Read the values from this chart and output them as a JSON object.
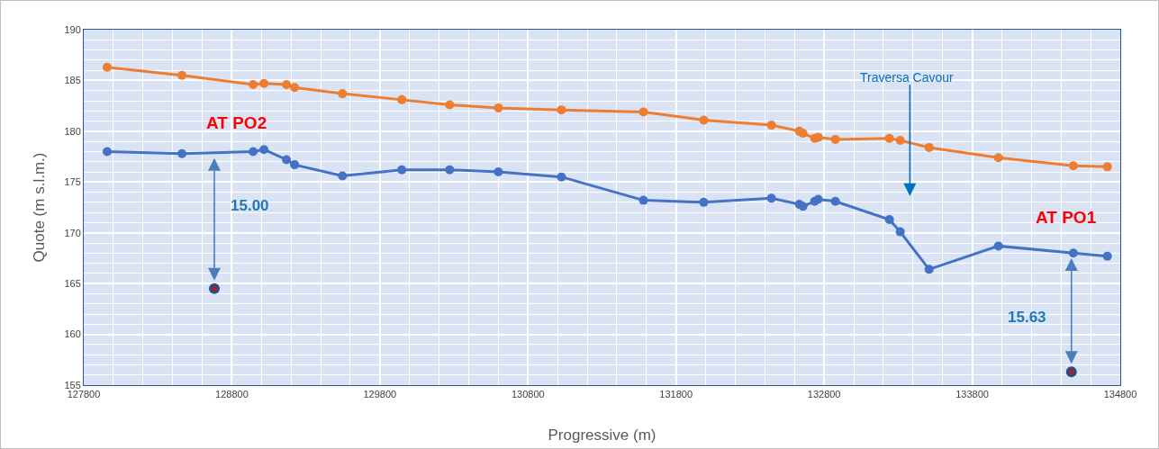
{
  "chart_data": {
    "type": "line",
    "xlabel": "Progressive (m)",
    "ylabel": "Quote (m s.l.m.)",
    "xlim": [
      127800,
      134800
    ],
    "xticks": [
      127800,
      128800,
      129800,
      130800,
      131800,
      132800,
      133800,
      134800
    ],
    "ylim": [
      155,
      190
    ],
    "yticks": [
      155,
      160,
      165,
      170,
      175,
      180,
      185,
      190
    ],
    "grid": true,
    "marker": "circle",
    "line_style": "solid",
    "series": [
      {
        "color": "#ed7d31",
        "x": [
          127958,
          128463,
          128944,
          129017,
          129169,
          129224,
          129547,
          129948,
          130271,
          130600,
          131026,
          131580,
          131987,
          132444,
          132633,
          132657,
          132736,
          132760,
          132876,
          133241,
          133314,
          133509,
          133977,
          134483,
          134713
        ],
        "values": [
          186.3,
          185.5,
          184.6,
          184.7,
          184.6,
          184.3,
          183.7,
          183.1,
          182.6,
          182.3,
          182.1,
          181.9,
          181.1,
          180.6,
          180.0,
          179.8,
          179.3,
          179.4,
          179.2,
          179.3,
          179.1,
          178.4,
          177.4,
          176.6,
          176.5
        ]
      },
      {
        "color": "#4472c4",
        "x": [
          127958,
          128463,
          128944,
          129017,
          129169,
          129224,
          129547,
          129948,
          130271,
          130600,
          131026,
          131580,
          131987,
          132444,
          132633,
          132657,
          132736,
          132760,
          132876,
          133241,
          133314,
          133509,
          133977,
          134483,
          134713
        ],
        "values": [
          178.0,
          177.8,
          178.0,
          178.2,
          177.2,
          176.7,
          175.6,
          176.2,
          176.2,
          176.0,
          175.5,
          173.2,
          173.0,
          173.4,
          172.8,
          172.6,
          173.1,
          173.3,
          173.1,
          171.3,
          170.1,
          166.4,
          168.7,
          168.0,
          167.7
        ]
      },
      {
        "type": "scatter",
        "color": "#ff0000",
        "x": [
          128682,
          134470
        ],
        "values": [
          164.5,
          156.3
        ]
      }
    ],
    "annotations": [
      "AT PO2",
      "15.00",
      "Traversa Cavour",
      "AT PO1",
      "15.63"
    ]
  }
}
